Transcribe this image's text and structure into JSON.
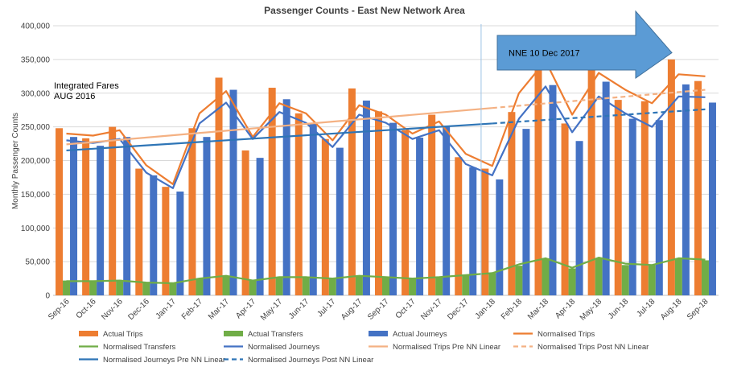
{
  "chart_data": {
    "type": "bar",
    "title": "Passenger Counts - East New Network Area",
    "ylabel": "Monthly Passenger Counts",
    "xlabel": "",
    "ylim": [
      0,
      400000
    ],
    "yticks": [
      "0",
      "50,000",
      "100,000",
      "150,000",
      "200,000",
      "250,000",
      "300,000",
      "350,000",
      "400,000"
    ],
    "grid": true,
    "legend_position": "bottom",
    "categories": [
      "Sep-16",
      "Oct-16",
      "Nov-16",
      "Dec-16",
      "Jan-17",
      "Feb-17",
      "Mar-17",
      "Apr-17",
      "May-17",
      "Jun-17",
      "Jul-17",
      "Aug-17",
      "Sep-17",
      "Oct-17",
      "Nov-17",
      "Dec-17",
      "Jan-18",
      "Feb-18",
      "Mar-18",
      "Apr-18",
      "May-18",
      "Jun-18",
      "Jul-18",
      "Aug-18",
      "Sep-18"
    ],
    "bar_series": [
      {
        "name": "Actual Trips",
        "color": "#ED7D31",
        "values": [
          248000,
          233000,
          250000,
          188000,
          161000,
          248000,
          323000,
          215000,
          308000,
          270000,
          232000,
          307000,
          273000,
          245000,
          268000,
          205000,
          188000,
          272000,
          350000,
          255000,
          353000,
          290000,
          288000,
          350000,
          318000
        ]
      },
      {
        "name": "Actual Transfers",
        "color": "#70AD47",
        "values": [
          22000,
          21000,
          22000,
          19000,
          18000,
          25000,
          29000,
          23000,
          27000,
          27000,
          25000,
          29000,
          27000,
          26000,
          27000,
          30000,
          33000,
          44000,
          55000,
          40000,
          55000,
          45000,
          45000,
          55000,
          52000
        ]
      },
      {
        "name": "Actual Journeys",
        "color": "#4472C4",
        "values": [
          235000,
          222000,
          235000,
          178000,
          154000,
          235000,
          305000,
          204000,
          291000,
          255000,
          219000,
          289000,
          256000,
          234000,
          250000,
          190000,
          172000,
          247000,
          312000,
          229000,
          317000,
          262000,
          260000,
          313000,
          286000
        ]
      }
    ],
    "line_series": [
      {
        "name": "Normalised Trips",
        "color": "#ED7D31",
        "values": [
          240000,
          237000,
          245000,
          193000,
          165000,
          270000,
          303000,
          235000,
          285000,
          270000,
          230000,
          282000,
          268000,
          240000,
          258000,
          210000,
          192000,
          300000,
          348000,
          268000,
          330000,
          305000,
          285000,
          328000,
          325000
        ]
      },
      {
        "name": "Normalised Transfers",
        "color": "#70AD47",
        "values": [
          21000,
          21000,
          22000,
          19000,
          18000,
          25000,
          29000,
          22000,
          27000,
          27000,
          25000,
          29000,
          27000,
          25000,
          27000,
          30000,
          33000,
          46000,
          55000,
          41000,
          56000,
          47000,
          45000,
          55000,
          53000
        ]
      },
      {
        "name": "Normalised Journeys",
        "color": "#4472C4",
        "values": [
          230000,
          226000,
          232000,
          182000,
          159000,
          255000,
          286000,
          232000,
          272000,
          256000,
          220000,
          268000,
          256000,
          232000,
          245000,
          195000,
          178000,
          262000,
          310000,
          242000,
          295000,
          270000,
          250000,
          295000,
          294000
        ]
      }
    ],
    "trend_series": [
      {
        "name": "Normalised Trips Pre NN Linear",
        "color": "#F4B183",
        "dash": false,
        "start": "Sep-16",
        "end": "Jan-18",
        "y_start": 224000,
        "y_end": 278000
      },
      {
        "name": "Normalised Trips Post NN Linear",
        "color": "#F4B183",
        "dash": true,
        "start": "Jan-18",
        "end": "Sep-18",
        "y_start": 278000,
        "y_end": 305000
      },
      {
        "name": "Normalised Journeys Pre NN Linear",
        "color": "#2E75B6",
        "dash": false,
        "start": "Sep-16",
        "end": "Jan-18",
        "y_start": 215000,
        "y_end": 255000
      },
      {
        "name": "Normalised Journeys Post NN Linear",
        "color": "#2E75B6",
        "dash": true,
        "start": "Jan-18",
        "end": "Sep-18",
        "y_start": 255000,
        "y_end": 276000
      }
    ],
    "annotations": [
      {
        "text_lines": [
          "Integrated Fares",
          "AUG 2016"
        ]
      },
      {
        "text": "NNE 10 Dec 2017",
        "shape": "right-arrow",
        "color": "#5B9BD5"
      }
    ],
    "legend": [
      [
        "Actual Trips",
        "Actual Transfers",
        "Actual Journeys",
        "Normalised Trips"
      ],
      [
        "Normalised Transfers",
        "Normalised Journeys",
        "Normalised Trips Pre NN Linear",
        "Normalised Trips Post NN Linear"
      ],
      [
        "Normalised Journeys Pre NN Linear",
        "Normalised Journeys Post NN Linear"
      ]
    ]
  }
}
